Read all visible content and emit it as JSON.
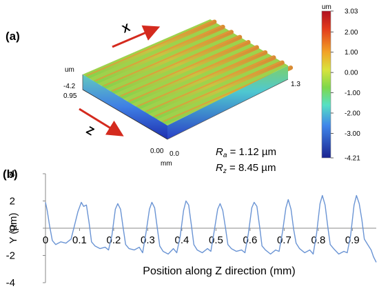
{
  "panel_a": {
    "label": "(a)",
    "axis_x_letter": "X",
    "axis_z_letter": "Z",
    "height_unit": "um",
    "height_value": "-4.2",
    "z_extent_max": "0.95",
    "x_extent_max": "1.3",
    "origin_z": "0.00",
    "origin_x": "0.0",
    "length_unit": "mm",
    "ra_symbol": "R",
    "ra_sub": "a",
    "ra_value": " = 1.12 µm",
    "rz_symbol": "R",
    "rz_sub": "z",
    "rz_value": " = 8.45 µm",
    "colorbar": {
      "unit": "um",
      "ticks": [
        "3.03",
        "2.00",
        "1.00",
        "0.00",
        "-1.00",
        "-2.00",
        "-3.00",
        "-4.21"
      ],
      "tick_values": [
        3.03,
        2.0,
        1.0,
        0.0,
        -1.0,
        -2.0,
        -3.0,
        -4.21
      ],
      "colors": [
        "#c8102e",
        "#f08a24",
        "#e9e34a",
        "#6ad24a",
        "#5fe0d6",
        "#3b78e6",
        "#1b2fa6"
      ]
    },
    "colors": {
      "arrow": "#d42a1e",
      "surface_top": "#e0a23a",
      "surface_green": "#8fd04a",
      "side_blue": "#2f5fe0"
    }
  },
  "chart_data": {
    "type": "line",
    "panel_label": "(b)",
    "xlabel": "Position along Z direction (mm)",
    "ylabel": "Y (µm)",
    "xlim": [
      0,
      0.97
    ],
    "ylim": [
      -4,
      4
    ],
    "xticks": [
      0,
      0.1,
      0.2,
      0.3,
      0.4,
      0.5,
      0.6,
      0.7,
      0.8,
      0.9
    ],
    "xtick_labels": [
      "0",
      "0.1",
      "0.2",
      "0.3",
      "0.4",
      "0.5",
      "0.6",
      "0.7",
      "0.8",
      "0.9"
    ],
    "yticks": [
      -4,
      -2,
      0,
      2,
      4
    ],
    "ytick_labels": [
      "-4",
      "-2",
      "0",
      "2",
      "4"
    ],
    "line_color": "#6a94d4",
    "x": [
      0,
      0.005,
      0.012,
      0.02,
      0.03,
      0.045,
      0.06,
      0.075,
      0.085,
      0.095,
      0.105,
      0.112,
      0.12,
      0.128,
      0.135,
      0.145,
      0.16,
      0.175,
      0.185,
      0.195,
      0.205,
      0.212,
      0.22,
      0.228,
      0.235,
      0.245,
      0.26,
      0.275,
      0.285,
      0.295,
      0.305,
      0.312,
      0.32,
      0.328,
      0.335,
      0.345,
      0.36,
      0.375,
      0.385,
      0.395,
      0.405,
      0.412,
      0.42,
      0.428,
      0.435,
      0.445,
      0.46,
      0.475,
      0.485,
      0.495,
      0.505,
      0.512,
      0.52,
      0.528,
      0.535,
      0.545,
      0.56,
      0.575,
      0.585,
      0.595,
      0.605,
      0.612,
      0.62,
      0.628,
      0.635,
      0.645,
      0.66,
      0.675,
      0.685,
      0.695,
      0.705,
      0.712,
      0.72,
      0.728,
      0.735,
      0.745,
      0.76,
      0.775,
      0.785,
      0.795,
      0.805,
      0.812,
      0.82,
      0.828,
      0.835,
      0.845,
      0.86,
      0.875,
      0.885,
      0.895,
      0.905,
      0.912,
      0.92,
      0.928,
      0.935,
      0.945,
      0.955,
      0.962,
      0.97
    ],
    "y": [
      1.9,
      1.3,
      0.2,
      -0.9,
      -1.2,
      -1.0,
      -1.1,
      -0.8,
      0.2,
      1.2,
      1.9,
      1.6,
      1.7,
      0.4,
      -1.0,
      -1.3,
      -1.5,
      -1.4,
      -1.6,
      -0.5,
      1.4,
      1.8,
      1.4,
      0.0,
      -1.2,
      -1.5,
      -1.6,
      -1.4,
      -1.8,
      -0.3,
      1.4,
      1.9,
      1.5,
      0.0,
      -1.3,
      -1.7,
      -1.9,
      -1.5,
      -1.8,
      -0.6,
      1.3,
      2.0,
      1.7,
      0.2,
      -1.2,
      -1.6,
      -1.8,
      -1.5,
      -1.7,
      -0.2,
      1.4,
      1.8,
      1.3,
      0.0,
      -1.2,
      -1.5,
      -1.7,
      -1.6,
      -1.8,
      -0.4,
      1.5,
      1.9,
      1.6,
      0.1,
      -1.3,
      -1.6,
      -1.9,
      -1.6,
      -1.7,
      -0.3,
      1.5,
      2.1,
      1.4,
      -0.1,
      -1.1,
      -1.5,
      -1.8,
      -1.6,
      -1.9,
      -0.4,
      1.8,
      2.4,
      1.7,
      0.1,
      -1.2,
      -1.5,
      -1.9,
      -1.7,
      -1.8,
      -0.5,
      1.7,
      2.4,
      1.8,
      0.6,
      -0.8,
      -1.2,
      -1.6,
      -2.1,
      -2.5
    ]
  }
}
